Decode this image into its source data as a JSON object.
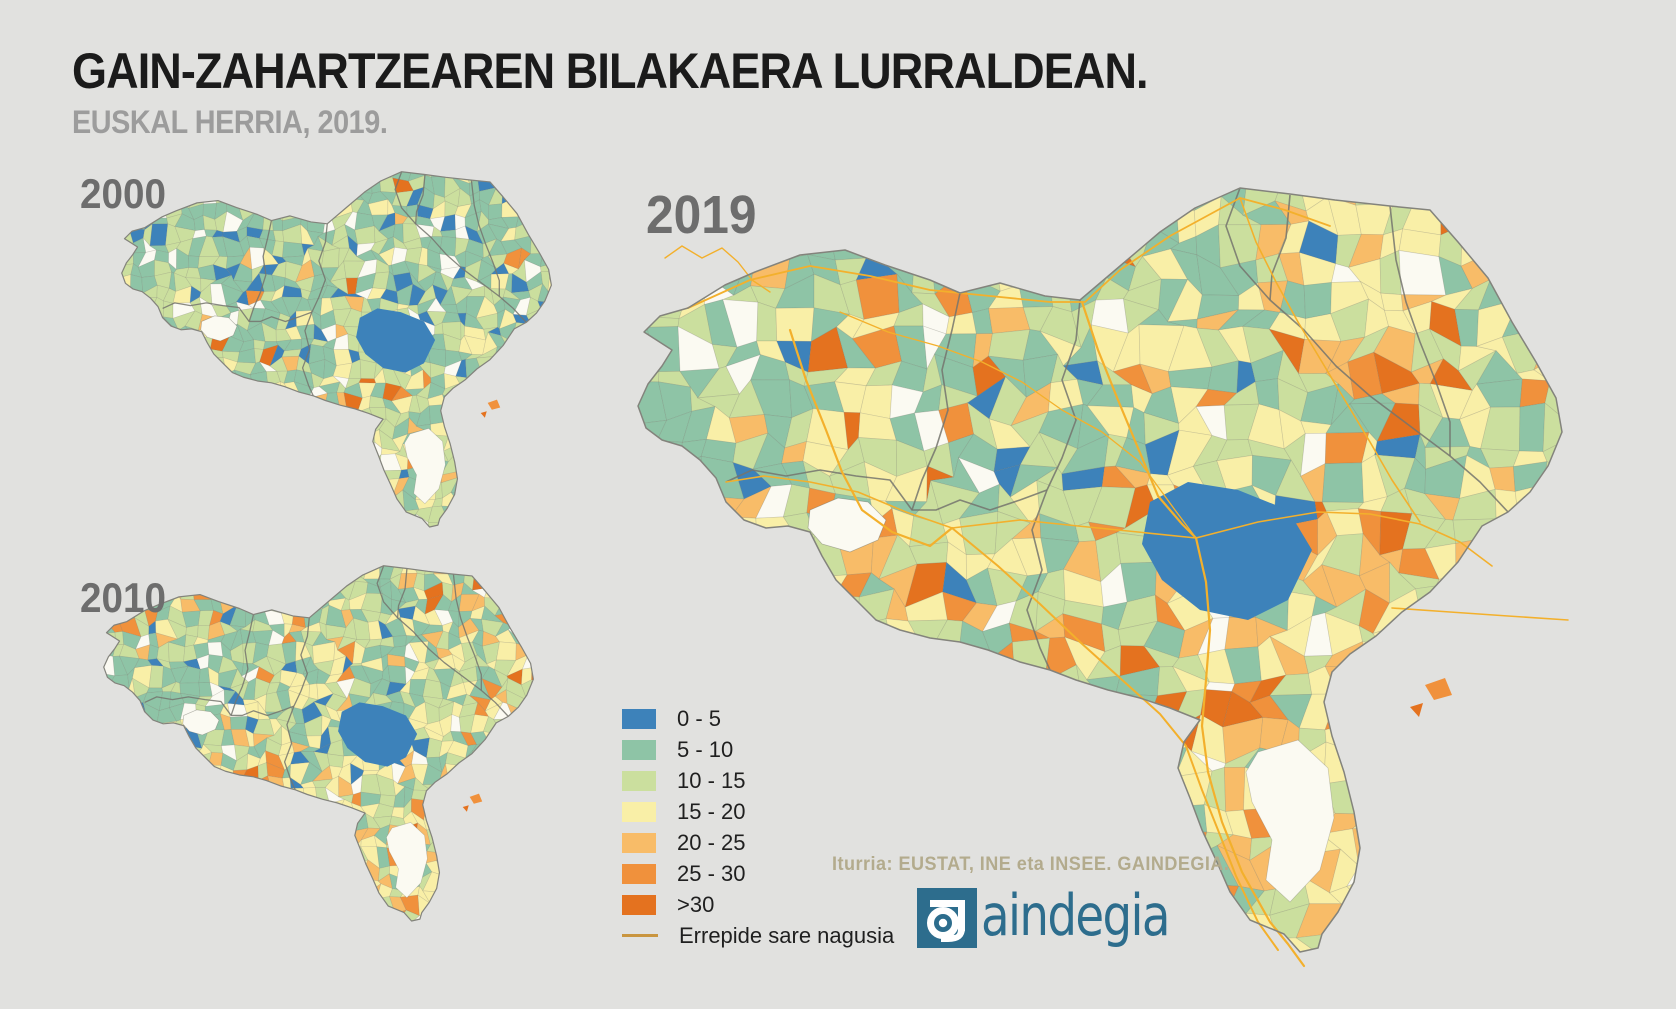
{
  "title": "GAIN-ZAHARTZEAREN BILAKAERA LURRALDEAN.",
  "subtitle": "EUSKAL HERRIA, 2019.",
  "maps": [
    {
      "year": "2000"
    },
    {
      "year": "2010"
    },
    {
      "year": "2019"
    }
  ],
  "legend": {
    "items": [
      {
        "label": "0 - 5",
        "color": "#3d82ba"
      },
      {
        "label": "5 - 10",
        "color": "#8ec4a6"
      },
      {
        "label": "10 - 15",
        "color": "#cbdf9e"
      },
      {
        "label": "15 - 20",
        "color": "#f9efa7"
      },
      {
        "label": "20 - 25",
        "color": "#f8bc68"
      },
      {
        "label": "25 - 30",
        "color": "#f0913c"
      },
      {
        "label": ">30",
        "color": "#e4721f"
      }
    ],
    "road": {
      "label": "Errepide sare nagusia",
      "color": "#c9953f"
    }
  },
  "source": "Iturria: EUSTAT, INE eta INSEE. GAINDEGIA.",
  "logo": {
    "g": "g",
    "text": "aindegia",
    "color": "#2d6d8d"
  },
  "map_colors": {
    "background": "#e1e1df",
    "no_data": "#fbfaf2",
    "road": "#f3b02c",
    "province_border": "#74746d",
    "outline": "#83837c",
    "title_color": "#1b1b1b",
    "subtitle_color": "#9c9c9c",
    "year_color": "#6d6d6d",
    "source_color": "#b3ab8d"
  }
}
